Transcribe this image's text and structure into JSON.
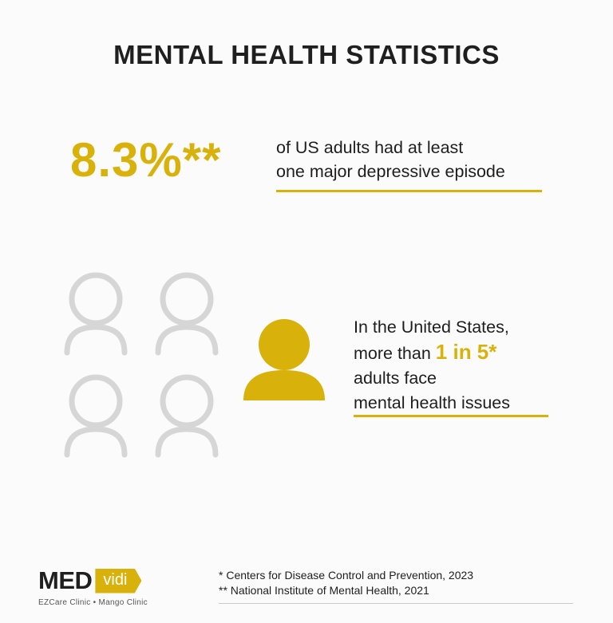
{
  "title": "MENTAL HEALTH STATISTICS",
  "stat1": {
    "value": "8.3%**",
    "line1": "of US adults had at least",
    "line2": "one major depressive episode"
  },
  "stat2": {
    "line1": "In the United States,",
    "line2_prefix": "more than ",
    "highlight": "1 in 5*",
    "line3": "adults face",
    "line4": "mental health issues"
  },
  "people_icons": {
    "total": 5,
    "highlighted": 1,
    "outline_color": "#d6d6d6",
    "highlight_color": "#d8b20a"
  },
  "logo": {
    "part1": "MED",
    "part2": "vidi",
    "tagline": "EZCare Clinic • Mango Clinic"
  },
  "sources": [
    "*  Centers for Disease Control and Prevention, 2023",
    "** National Institute of Mental Health, 2021"
  ],
  "colors": {
    "accent": "#d8b20a",
    "text": "#1e1e1e",
    "background": "#fbfbfb"
  }
}
